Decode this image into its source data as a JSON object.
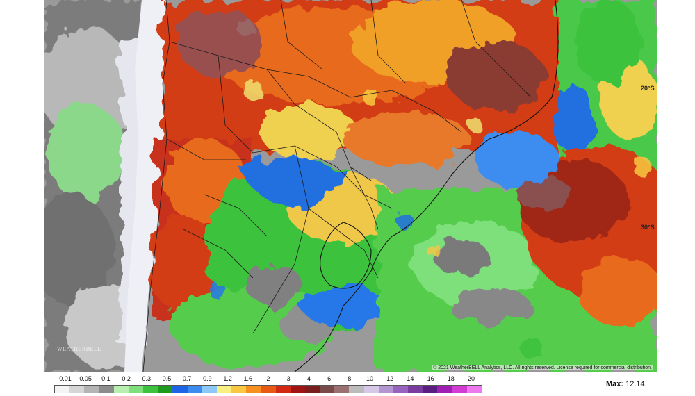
{
  "map": {
    "lat_labels": [
      "20°S",
      "30°S"
    ],
    "copyright": "© 2021 WeatherBELL Analytics, LLC. All rights reserved. License required for commercial distribution.",
    "logo_text": "WEATHERBELL"
  },
  "colorbar": {
    "labels": [
      "0.01",
      "0.05",
      "0.1",
      "0.2",
      "0.3",
      "0.5",
      "0.7",
      "0.9",
      "1.2",
      "1.6",
      "2",
      "3",
      "4",
      "6",
      "8",
      "10",
      "12",
      "14",
      "16",
      "18",
      "20"
    ],
    "colors": [
      "#f4f4f4",
      "#d6d6d6",
      "#b4b4b4",
      "#8c8c8c",
      "#b8f0b0",
      "#7ee07a",
      "#3cc23c",
      "#1e9a1e",
      "#1e64e6",
      "#3c8cf0",
      "#8cc8f8",
      "#f8f080",
      "#f8c840",
      "#f89020",
      "#e85a14",
      "#d22814",
      "#a01414",
      "#781e1e",
      "#7a4a4a",
      "#9a7070",
      "#bcbcbc",
      "#d8c8e8",
      "#b496d2",
      "#9664be",
      "#7a3ca0",
      "#5a1e82",
      "#a01eb4",
      "#d23cd2",
      "#ee78ee"
    ]
  },
  "max": {
    "label": "Max:",
    "value": "12.14"
  }
}
